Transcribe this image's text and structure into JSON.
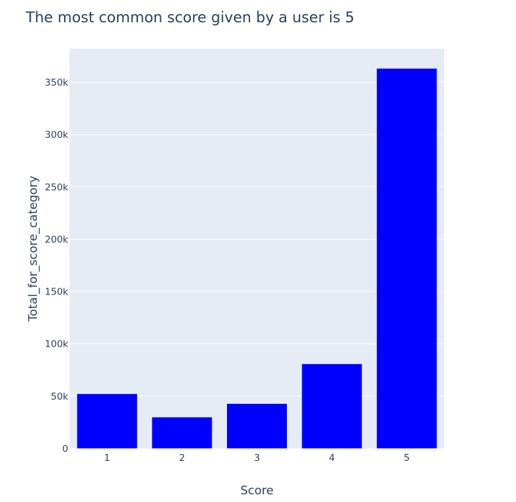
{
  "chart_data": {
    "type": "bar",
    "title": "The most common score given by a user is 5",
    "xlabel": "Score",
    "ylabel": "Total_for_score_category",
    "categories": [
      "1",
      "2",
      "3",
      "4",
      "5"
    ],
    "values": [
      52000,
      29700,
      42600,
      80600,
      363000
    ],
    "ylim": [
      0,
      382000
    ],
    "yticks": [
      0,
      50000,
      100000,
      150000,
      200000,
      250000,
      300000,
      350000
    ],
    "ytick_labels": [
      "0",
      "50k",
      "100k",
      "150k",
      "200k",
      "250k",
      "300k",
      "350k"
    ],
    "grid": true,
    "legend": "none",
    "colors": {
      "bar": "#0000ff",
      "plot_background": "#e5ecf6",
      "gridline": "#ffffff",
      "text": "#2a3f5f"
    }
  }
}
